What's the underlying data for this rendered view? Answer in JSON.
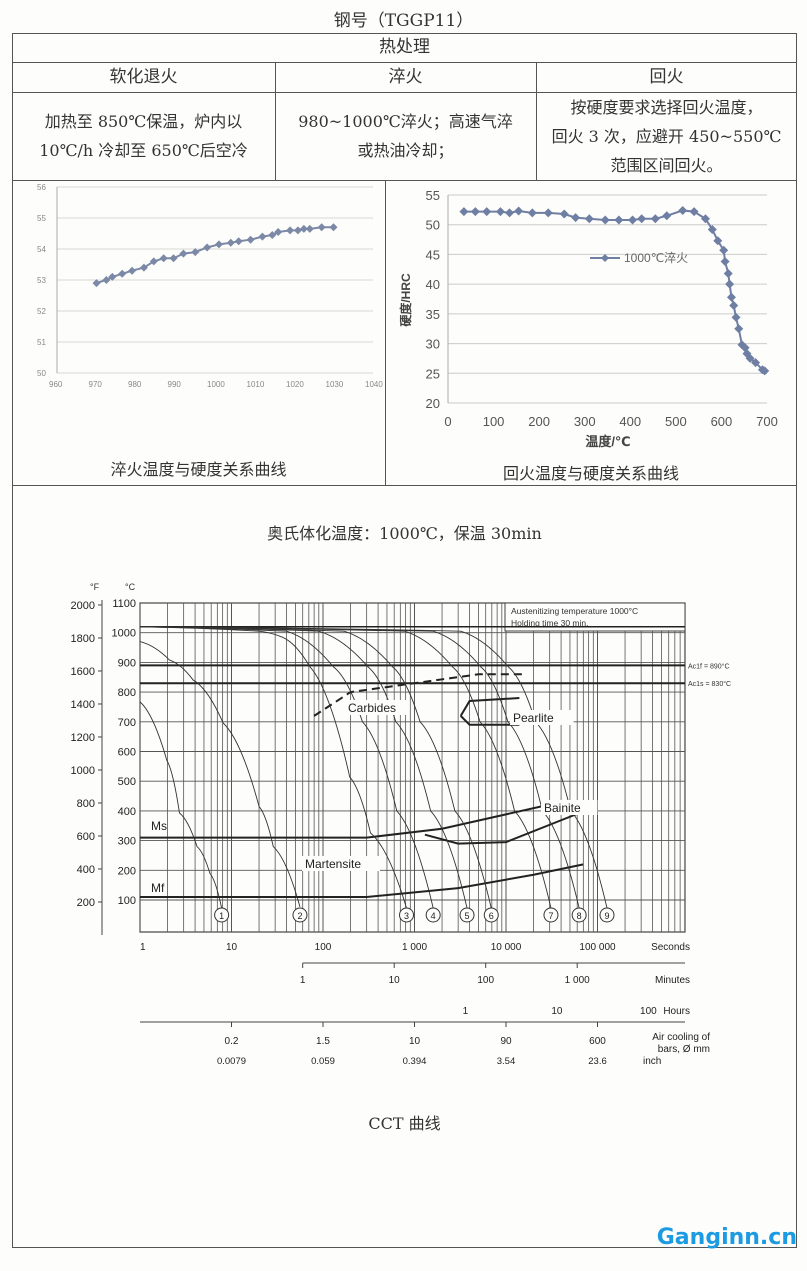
{
  "title": "钢号（TGGP11）",
  "table": {
    "section_header": "热处理",
    "columns": [
      "软化退火",
      "淬火",
      "回火"
    ],
    "cells": [
      [
        "加热至 850℃保温，炉内以",
        "10℃/h 冷却至 650℃后空冷"
      ],
      [
        "980~1000℃淬火；高速气淬",
        "或热油冷却；"
      ],
      [
        "按硬度要求选择回火温度，",
        "回火 3 次，应避开 450~550℃",
        "范围区间回火。"
      ]
    ]
  },
  "chart_data": [
    {
      "type": "line",
      "caption": "淬火温度与硬度关系曲线",
      "xlim": [
        960,
        1040
      ],
      "ylim": [
        50,
        56
      ],
      "xticks": [
        960,
        970,
        980,
        990,
        1000,
        1010,
        1020,
        1030,
        1040
      ],
      "yticks": [
        50,
        51,
        52,
        53,
        54,
        55,
        56
      ],
      "grid": true,
      "color": "#7b88a6",
      "x": [
        970,
        972.5,
        974,
        976.5,
        979,
        982,
        984.5,
        987,
        989.5,
        992,
        995,
        998,
        1001,
        1004,
        1006,
        1009,
        1012,
        1014.5,
        1016,
        1019,
        1021,
        1022.5,
        1024,
        1027,
        1030
      ],
      "y": [
        52.9,
        53.0,
        53.1,
        53.2,
        53.3,
        53.4,
        53.6,
        53.7,
        53.7,
        53.85,
        53.9,
        54.05,
        54.15,
        54.2,
        54.25,
        54.3,
        54.4,
        54.45,
        54.55,
        54.6,
        54.6,
        54.65,
        54.65,
        54.7,
        54.7
      ]
    },
    {
      "type": "line",
      "caption": "回火温度与硬度关系曲线",
      "xlabel": "温度/℃",
      "ylabel": "硬度/HRC",
      "xlim": [
        0,
        700
      ],
      "ylim": [
        20,
        55
      ],
      "xticks": [
        0,
        100,
        200,
        300,
        400,
        500,
        600,
        700
      ],
      "yticks": [
        20,
        25,
        30,
        35,
        40,
        45,
        50,
        55
      ],
      "grid": true,
      "legend": "right-middle",
      "color": "#6f7fa3",
      "series": [
        {
          "name": "1000℃淬火",
          "x": [
            35,
            60,
            85,
            115,
            135,
            155,
            185,
            220,
            255,
            280,
            310,
            345,
            375,
            405,
            425,
            455,
            480,
            515,
            540,
            565,
            580,
            592,
            605,
            608,
            615,
            618,
            622,
            627,
            632,
            638,
            645,
            652,
            656,
            663,
            675,
            690,
            695
          ],
          "y": [
            52.2,
            52.2,
            52.2,
            52.2,
            52.0,
            52.3,
            52.0,
            52.0,
            51.8,
            51.2,
            51.0,
            50.8,
            50.8,
            50.8,
            51.0,
            51.0,
            51.5,
            52.4,
            52.2,
            51.0,
            49.2,
            47.3,
            45.7,
            43.8,
            41.8,
            40.0,
            37.8,
            36.4,
            34.4,
            32.5,
            29.8,
            29.3,
            28.3,
            27.5,
            26.8,
            25.6,
            25.4
          ]
        }
      ]
    },
    {
      "type": "line",
      "subtitle": "奥氏体化温度：1000℃，保温 30min",
      "caption": "CCT 曲线",
      "box_text": [
        "Austenitizing temperature 1000°C",
        "Holding time 30 min."
      ],
      "x_scale": "log",
      "xlim_seconds": [
        1,
        1000000
      ],
      "ylim_c": [
        0,
        1100
      ],
      "unit_f": "°F",
      "unit_c": "°C",
      "yticks_c": [
        100,
        200,
        300,
        400,
        500,
        600,
        700,
        800,
        900,
        1000,
        1100
      ],
      "yticks_f": [
        200,
        400,
        600,
        800,
        1000,
        1200,
        1400,
        1600,
        1800,
        2000
      ],
      "seconds_ticks": [
        "1",
        "10",
        "100",
        "1 000",
        "10 000",
        "100 000"
      ],
      "seconds_label": "Seconds",
      "minutes_ticks": [
        "1",
        "10",
        "100",
        "1 000"
      ],
      "minutes_label": "Minutes",
      "hours_ticks": [
        "1",
        "10",
        "100"
      ],
      "hours_label": "Hours",
      "air_cooling_mm": [
        "0.2",
        "1.5",
        "10",
        "90",
        "600"
      ],
      "air_cooling_inch": [
        "0.0079",
        "0.059",
        "0.394",
        "3.54",
        "23.6"
      ],
      "air_cooling_label": [
        "Air cooling of",
        "bars, Ø mm"
      ],
      "inch_label": "inch",
      "ac1f": {
        "label": "Ac1f = 890°C",
        "value": 890
      },
      "ac1s": {
        "label": "Ac1s = 830°C",
        "value": 830
      },
      "regions": [
        "Carbides",
        "Pearlite",
        "Bainite",
        "Martensite"
      ],
      "ms_label": "Ms",
      "mf_label": "Mf",
      "ms_line": [
        [
          1,
          310
        ],
        [
          300,
          310
        ],
        [
          2000,
          340
        ],
        [
          40000,
          430
        ]
      ],
      "bainite_lower": [
        [
          1300,
          320
        ],
        [
          3000,
          290
        ],
        [
          10000,
          295
        ],
        [
          60000,
          390
        ]
      ],
      "mf_line": [
        [
          1,
          110
        ],
        [
          300,
          110
        ],
        [
          3000,
          140
        ],
        [
          20000,
          185
        ],
        [
          70000,
          220
        ]
      ],
      "carbides_line": [
        [
          80,
          720
        ],
        [
          200,
          800
        ],
        [
          1000,
          830
        ],
        [
          5000,
          860
        ],
        [
          15000,
          860
        ]
      ],
      "pearlite_nose": {
        "upper": [
          [
            14000,
            780
          ],
          [
            4000,
            770
          ],
          [
            3200,
            720
          ]
        ],
        "lower": [
          [
            3200,
            720
          ],
          [
            4000,
            690
          ],
          [
            14000,
            690
          ]
        ]
      },
      "cooling_curves": [
        {
          "label": "1",
          "points": [
            [
              1,
              767
            ],
            [
              1.96,
              571
            ],
            [
              2.7,
              393
            ],
            [
              4.2,
              280
            ],
            [
              5.8,
              190
            ],
            [
              7.8,
              73
            ]
          ]
        },
        {
          "label": "2",
          "points": [
            [
              1,
              970
            ],
            [
              2.1,
              908
            ],
            [
              3.8,
              841
            ],
            [
              8.1,
              696
            ],
            [
              20,
              415
            ],
            [
              28.6,
              280
            ],
            [
              56,
              77
            ]
          ]
        },
        {
          "label": "3",
          "points": [
            [
              1,
              1020
            ],
            [
              20,
              1005
            ],
            [
              36,
              985
            ],
            [
              72,
              885
            ],
            [
              196,
              514
            ],
            [
              330,
              326
            ],
            [
              818,
              73
            ]
          ]
        },
        {
          "label": "4",
          "points": [
            [
              1,
              1020
            ],
            [
              40,
              1005
            ],
            [
              130,
              885
            ],
            [
              270,
              700
            ],
            [
              640,
              400
            ],
            [
              1600,
              73
            ]
          ]
        },
        {
          "label": "5",
          "points": [
            [
              1,
              1020
            ],
            [
              90,
              1005
            ],
            [
              310,
              885
            ],
            [
              625,
              700
            ],
            [
              1500,
              400
            ],
            [
              3750,
              73
            ]
          ]
        },
        {
          "label": "6",
          "points": [
            [
              1,
              1020
            ],
            [
              170,
              1005
            ],
            [
              575,
              885
            ],
            [
              1150,
              700
            ],
            [
              2760,
              400
            ],
            [
              6900,
              73
            ]
          ]
        },
        {
          "label": "7",
          "points": [
            [
              1,
              1020
            ],
            [
              780,
              1005
            ],
            [
              2600,
              885
            ],
            [
              5200,
              700
            ],
            [
              12400,
              400
            ],
            [
              31000,
              73
            ]
          ]
        },
        {
          "label": "8",
          "points": [
            [
              1,
              1020
            ],
            [
              1600,
              1005
            ],
            [
              5300,
              885
            ],
            [
              10500,
              700
            ],
            [
              25000,
              400
            ],
            [
              63000,
              73
            ]
          ]
        },
        {
          "label": "9",
          "points": [
            [
              1,
              1020
            ],
            [
              3200,
              1005
            ],
            [
              10600,
              885
            ],
            [
              21000,
              700
            ],
            [
              51000,
              400
            ],
            [
              127000,
              73
            ]
          ]
        }
      ]
    }
  ],
  "watermark": "Ganginn.cn"
}
